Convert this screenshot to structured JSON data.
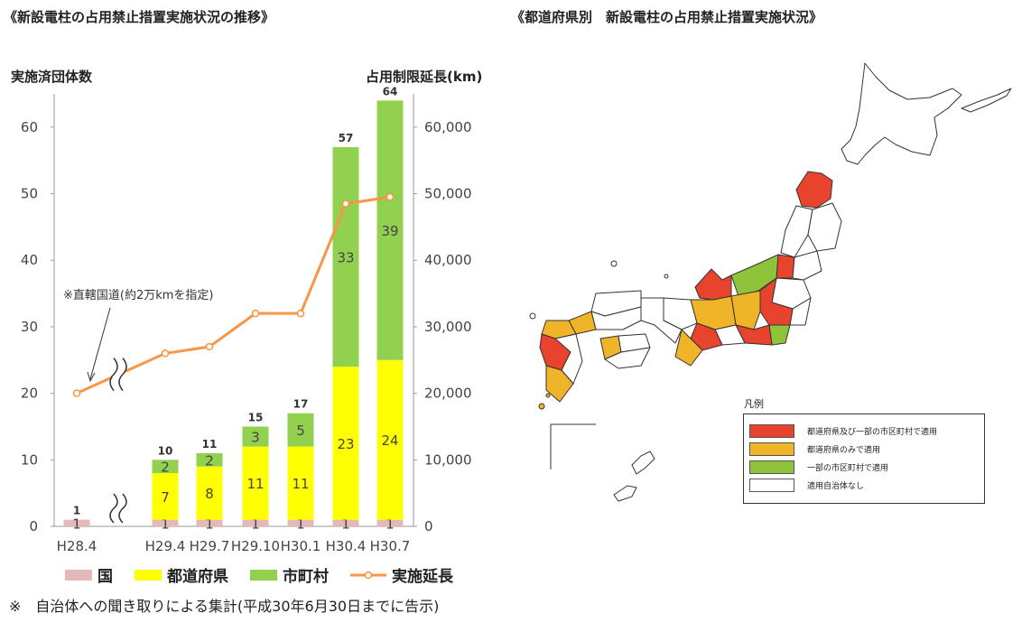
{
  "left_title": "《新設電柱の占用禁止措置実施状況の推移》",
  "right_title": "《都道府県別　新設電柱の占用禁止措置実施状況》",
  "footnote": "※　自治体への聞き取りによる集計(平成30年6月30日までに告示)",
  "chart_data": {
    "type": "bar",
    "stacked": true,
    "categories": [
      "H28.4",
      "H29.4",
      "H29.7",
      "H29.10",
      "H30.1",
      "H30.4",
      "H30.7"
    ],
    "y_left_label": "実施済団体数",
    "y_right_label": "占用制限延長(km)",
    "y_left_ticks": [
      "0",
      "10",
      "20",
      "30",
      "40",
      "50",
      "60"
    ],
    "y_right_ticks": [
      "0",
      "10,000",
      "20,000",
      "30,000",
      "40,000",
      "50,000",
      "60,000"
    ],
    "ylim_left": [
      0,
      65
    ],
    "ylim_right": [
      0,
      65000
    ],
    "series": [
      {
        "name": "国",
        "color": "#e6b9b8",
        "values": [
          1,
          1,
          1,
          1,
          1,
          1,
          1
        ]
      },
      {
        "name": "都道府県",
        "color": "#ffff00",
        "values": [
          0,
          7,
          8,
          11,
          11,
          23,
          24
        ]
      },
      {
        "name": "市町村",
        "color": "#92d050",
        "values": [
          0,
          2,
          2,
          3,
          5,
          33,
          39
        ]
      }
    ],
    "totals": [
      1,
      10,
      11,
      15,
      17,
      57,
      64
    ],
    "line_series": {
      "name": "実施延長",
      "color": "#f79646",
      "values": [
        20000,
        26000,
        27000,
        32000,
        32000,
        48500,
        49500
      ]
    },
    "annotation": "※直轄国道(約2万kmを指定)",
    "grid": false,
    "legend_position": "bottom"
  },
  "map": {
    "legend_title": "凡例",
    "legend_items": [
      {
        "label": "都道府県及び一部の市区町村で適用",
        "color": "#e8432d"
      },
      {
        "label": "都道府県のみで適用",
        "color": "#f0b428"
      },
      {
        "label": "一部の市区町村で適用",
        "color": "#8fc43a"
      },
      {
        "label": "適用自治体なし",
        "color": "#ffffff"
      }
    ]
  }
}
